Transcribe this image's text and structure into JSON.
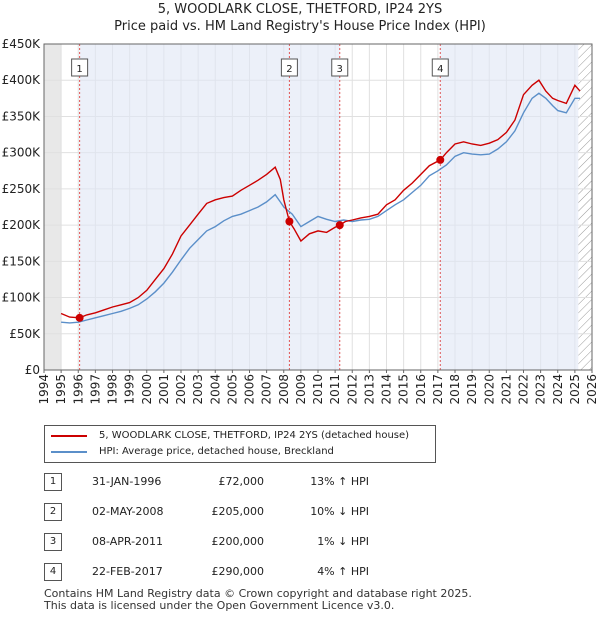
{
  "title_line1": "5, WOODLARK CLOSE, THETFORD, IP24 2YS",
  "title_line2": "Price paid vs. HM Land Registry's House Price Index (HPI)",
  "chart_data": {
    "type": "line",
    "title": "5, WOODLARK CLOSE, THETFORD, IP24 2YS — Price paid vs. HM Land Registry's House Price Index (HPI)",
    "xlim": [
      1994,
      2026
    ],
    "ylim": [
      0,
      450000
    ],
    "y_ticks": [
      0,
      50000,
      100000,
      150000,
      200000,
      250000,
      300000,
      350000,
      400000,
      450000
    ],
    "y_tick_labels": [
      "£0",
      "£50K",
      "£100K",
      "£150K",
      "£200K",
      "£250K",
      "£300K",
      "£350K",
      "£400K",
      "£450K"
    ],
    "x_ticks": [
      1994,
      1995,
      1996,
      1997,
      1998,
      1999,
      2000,
      2001,
      2002,
      2003,
      2004,
      2005,
      2006,
      2007,
      2008,
      2009,
      2010,
      2011,
      2012,
      2013,
      2014,
      2015,
      2016,
      2017,
      2018,
      2019,
      2020,
      2021,
      2022,
      2023,
      2024,
      2025,
      2026
    ],
    "data_start": 1995.0,
    "hatch_after": 2025.2,
    "series": [
      {
        "name": "5, WOODLARK CLOSE, THETFORD, IP24 2YS (detached house)",
        "color": "#cc0000",
        "x": [
          1995.0,
          1995.5,
          1996.08,
          1996.5,
          1997.0,
          1997.5,
          1998.0,
          1998.5,
          1999.0,
          1999.5,
          2000.0,
          2000.5,
          2001.0,
          2001.5,
          2002.0,
          2002.5,
          2003.0,
          2003.5,
          2004.0,
          2004.5,
          2005.0,
          2005.5,
          2006.0,
          2006.5,
          2007.0,
          2007.5,
          2007.8,
          2008.0,
          2008.33,
          2008.6,
          2009.0,
          2009.5,
          2010.0,
          2010.5,
          2011.0,
          2011.27,
          2011.6,
          2012.0,
          2012.5,
          2013.0,
          2013.5,
          2014.0,
          2014.5,
          2015.0,
          2015.5,
          2016.0,
          2016.5,
          2017.14,
          2017.5,
          2018.0,
          2018.5,
          2019.0,
          2019.5,
          2020.0,
          2020.5,
          2021.0,
          2021.5,
          2022.0,
          2022.5,
          2022.9,
          2023.3,
          2023.7,
          2024.0,
          2024.5,
          2025.0,
          2025.3
        ],
        "y": [
          78000,
          73000,
          72000,
          76000,
          79000,
          83000,
          87000,
          90000,
          93000,
          100000,
          110000,
          125000,
          140000,
          160000,
          185000,
          200000,
          215000,
          230000,
          235000,
          238000,
          240000,
          248000,
          255000,
          262000,
          270000,
          280000,
          263000,
          235000,
          205000,
          195000,
          178000,
          188000,
          192000,
          190000,
          197000,
          200000,
          205000,
          207000,
          210000,
          212000,
          215000,
          228000,
          235000,
          248000,
          258000,
          270000,
          282000,
          290000,
          300000,
          312000,
          315000,
          312000,
          310000,
          313000,
          318000,
          328000,
          345000,
          380000,
          393000,
          400000,
          385000,
          375000,
          372000,
          368000,
          393000,
          385000
        ]
      },
      {
        "name": "HPI: Average price, detached house, Breckland",
        "color": "#5b8fc9",
        "x": [
          1995.0,
          1995.5,
          1996.0,
          1996.5,
          1997.0,
          1997.5,
          1998.0,
          1998.5,
          1999.0,
          1999.5,
          2000.0,
          2000.5,
          2001.0,
          2001.5,
          2002.0,
          2002.5,
          2003.0,
          2003.5,
          2004.0,
          2004.5,
          2005.0,
          2005.5,
          2006.0,
          2006.5,
          2007.0,
          2007.5,
          2007.8,
          2008.0,
          2008.5,
          2009.0,
          2009.5,
          2010.0,
          2010.5,
          2011.0,
          2011.5,
          2012.0,
          2012.5,
          2013.0,
          2013.5,
          2014.0,
          2014.5,
          2015.0,
          2015.5,
          2016.0,
          2016.5,
          2017.0,
          2017.5,
          2018.0,
          2018.5,
          2019.0,
          2019.5,
          2020.0,
          2020.5,
          2021.0,
          2021.5,
          2022.0,
          2022.5,
          2022.9,
          2023.3,
          2023.7,
          2024.0,
          2024.5,
          2025.0,
          2025.3
        ],
        "y": [
          66000,
          65000,
          66000,
          69000,
          72000,
          75000,
          78000,
          81000,
          85000,
          90000,
          98000,
          108000,
          120000,
          135000,
          152000,
          168000,
          180000,
          192000,
          198000,
          206000,
          212000,
          215000,
          220000,
          225000,
          232000,
          242000,
          232000,
          225000,
          215000,
          198000,
          205000,
          212000,
          208000,
          205000,
          207000,
          205000,
          207000,
          208000,
          212000,
          220000,
          228000,
          235000,
          245000,
          255000,
          268000,
          275000,
          283000,
          295000,
          300000,
          298000,
          297000,
          298000,
          305000,
          315000,
          330000,
          355000,
          375000,
          382000,
          375000,
          365000,
          358000,
          355000,
          375000,
          375000
        ]
      }
    ],
    "sales": [
      {
        "label": "1",
        "x": 1996.08,
        "y": 72000,
        "date": "31-JAN-1996",
        "price": "£72,000",
        "hpi": "13% ↑ HPI"
      },
      {
        "label": "2",
        "x": 2008.33,
        "y": 205000,
        "date": "02-MAY-2008",
        "price": "£205,000",
        "hpi": "10% ↓ HPI"
      },
      {
        "label": "3",
        "x": 2011.27,
        "y": 200000,
        "date": "08-APR-2011",
        "price": "£200,000",
        "hpi": "1% ↓ HPI"
      },
      {
        "label": "4",
        "x": 2017.14,
        "y": 290000,
        "date": "22-FEB-2017",
        "price": "£290,000",
        "hpi": "4% ↑ HPI"
      }
    ]
  },
  "legend": {
    "property": "5, WOODLARK CLOSE, THETFORD, IP24 2YS (detached house)",
    "hpi": "HPI: Average price, detached house, Breckland"
  },
  "footer": {
    "line1": "Contains HM Land Registry data © Crown copyright and database right 2025.",
    "line2": "This data is licensed under the Open Government Licence v3.0."
  }
}
